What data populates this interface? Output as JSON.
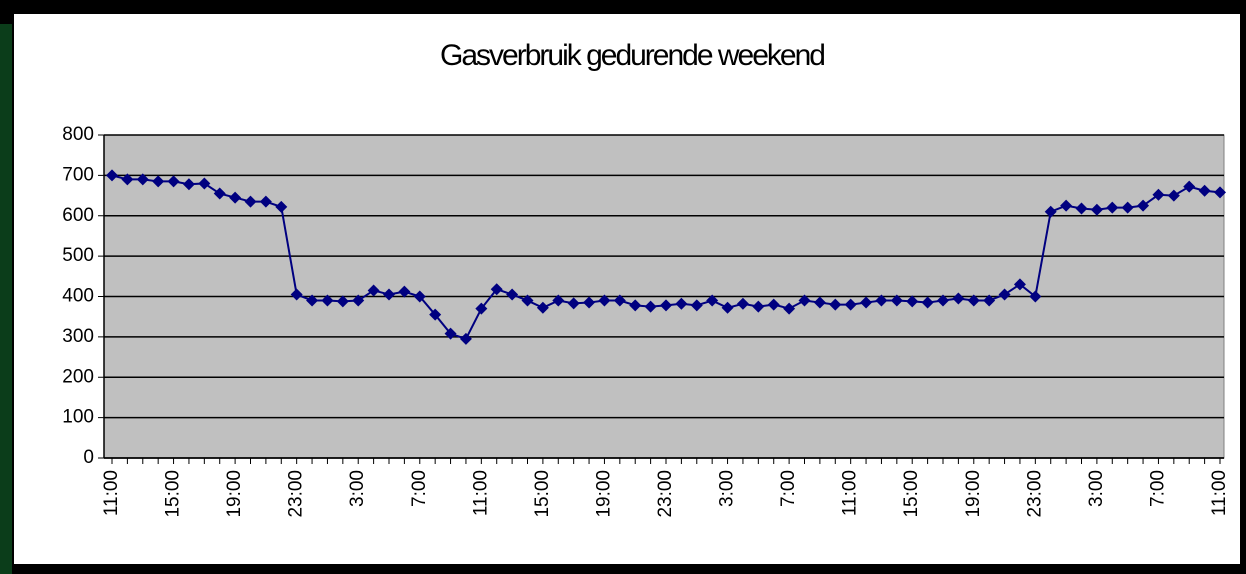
{
  "chart_data": {
    "type": "line",
    "title": "Gasverbruik gedurende weekend",
    "categories": [
      "11:00",
      null,
      null,
      null,
      "15:00",
      null,
      null,
      null,
      "19:00",
      null,
      null,
      null,
      "23:00",
      null,
      null,
      null,
      "3:00",
      null,
      null,
      null,
      "7:00",
      null,
      null,
      null,
      "11:00",
      null,
      null,
      null,
      "15:00",
      null,
      null,
      null,
      "19:00",
      null,
      null,
      null,
      "23:00",
      null,
      null,
      null,
      "3:00",
      null,
      null,
      null,
      "7:00",
      null,
      null,
      null,
      "11:00",
      null,
      null,
      null,
      "15:00",
      null,
      null,
      null,
      "19:00",
      null,
      null,
      null,
      "23:00",
      null,
      null,
      null,
      "3:00",
      null,
      null,
      null,
      "7:00",
      null,
      null,
      null,
      "11:00"
    ],
    "series": [
      {
        "color": "#000080",
        "values": [
          700,
          690,
          690,
          685,
          685,
          678,
          680,
          655,
          645,
          635,
          635,
          622,
          405,
          390,
          390,
          388,
          390,
          415,
          405,
          412,
          400,
          355,
          308,
          295,
          370,
          418,
          405,
          390,
          372,
          390,
          383,
          385,
          390,
          390,
          378,
          375,
          378,
          382,
          378,
          390,
          372,
          382,
          375,
          380,
          370,
          390,
          385,
          380,
          380,
          385,
          390,
          390,
          388,
          385,
          390,
          395,
          390,
          390,
          405,
          430,
          400,
          610,
          625,
          618,
          615,
          620,
          620,
          625,
          652,
          650,
          672,
          662,
          658
        ]
      }
    ],
    "ylim": [
      0,
      800
    ],
    "yticks": [
      0,
      100,
      200,
      300,
      400,
      500,
      600,
      700,
      800
    ],
    "grid": true,
    "plot_background": "#c0c0c0"
  }
}
